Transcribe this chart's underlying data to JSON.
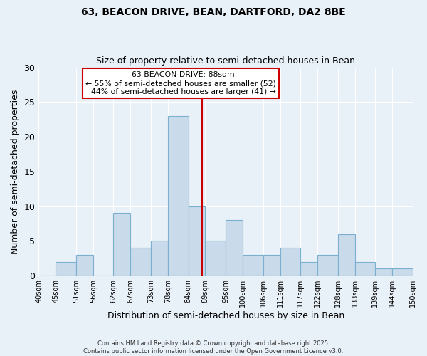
{
  "title": "63, BEACON DRIVE, BEAN, DARTFORD, DA2 8BE",
  "subtitle": "Size of property relative to semi-detached houses in Bean",
  "xlabel": "Distribution of semi-detached houses by size in Bean",
  "ylabel": "Number of semi-detached properties",
  "bar_color": "#c9daea",
  "bar_edge_color": "#7aafcf",
  "bg_color": "#e8f0f8",
  "grid_color": "#ffffff",
  "bins": [
    40,
    45,
    51,
    56,
    62,
    67,
    73,
    78,
    84,
    89,
    95,
    100,
    106,
    111,
    117,
    122,
    128,
    133,
    139,
    144,
    150
  ],
  "bin_labels": [
    "40sqm",
    "45sqm",
    "51sqm",
    "56sqm",
    "62sqm",
    "67sqm",
    "73sqm",
    "78sqm",
    "84sqm",
    "89sqm",
    "95sqm",
    "100sqm",
    "106sqm",
    "111sqm",
    "117sqm",
    "122sqm",
    "128sqm",
    "133sqm",
    "139sqm",
    "144sqm",
    "150sqm"
  ],
  "counts": [
    0,
    2,
    3,
    0,
    9,
    4,
    5,
    23,
    10,
    5,
    8,
    3,
    3,
    4,
    2,
    3,
    6,
    2,
    1,
    1
  ],
  "property_value": 88,
  "property_label": "63 BEACON DRIVE: 88sqm",
  "pct_smaller": 55,
  "pct_smaller_count": 52,
  "pct_larger": 44,
  "pct_larger_count": 41,
  "vline_color": "#cc0000",
  "annotation_box_edge": "#cc0000",
  "ylim": [
    0,
    30
  ],
  "yticks": [
    0,
    5,
    10,
    15,
    20,
    25,
    30
  ],
  "footnote1": "Contains HM Land Registry data © Crown copyright and database right 2025.",
  "footnote2": "Contains public sector information licensed under the Open Government Licence v3.0."
}
